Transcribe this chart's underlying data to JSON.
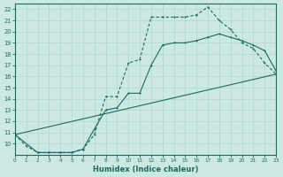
{
  "xlabel": "Humidex (Indice chaleur)",
  "bg_color": "#cce8e2",
  "line_color": "#1a6b5e",
  "grid_color": "#b0d8d0",
  "xlim": [
    0,
    23
  ],
  "ylim": [
    9,
    22.5
  ],
  "xtick_vals": [
    0,
    1,
    2,
    3,
    4,
    5,
    6,
    7,
    8,
    9,
    10,
    11,
    12,
    13,
    14,
    15,
    16,
    17,
    18,
    19,
    20,
    21,
    22,
    23
  ],
  "ytick_vals": [
    10,
    11,
    12,
    13,
    14,
    15,
    16,
    17,
    18,
    19,
    20,
    21,
    22
  ],
  "line1_x": [
    0,
    1,
    2,
    3,
    4,
    5,
    6,
    7,
    8,
    9,
    10,
    11,
    12,
    13,
    14,
    15,
    16,
    17,
    18,
    19,
    20,
    21,
    22,
    23
  ],
  "line1_y": [
    10.8,
    9.8,
    9.2,
    9.2,
    9.2,
    9.2,
    9.5,
    10.8,
    14.2,
    14.2,
    17.2,
    17.5,
    21.3,
    21.3,
    21.3,
    21.3,
    21.5,
    22.2,
    21.0,
    20.2,
    19.0,
    18.5,
    17.2,
    16.2
  ],
  "line2_x": [
    0,
    2,
    3,
    4,
    5,
    6,
    7,
    8,
    9,
    10,
    11,
    12,
    13,
    14,
    15,
    16,
    17,
    18,
    19,
    20,
    21,
    22,
    23
  ],
  "line2_y": [
    10.8,
    9.2,
    9.2,
    9.2,
    9.2,
    9.5,
    11.3,
    13.0,
    13.2,
    14.5,
    14.5,
    17.0,
    18.8,
    19.0,
    19.0,
    19.2,
    19.5,
    19.8,
    19.5,
    19.2,
    18.8,
    18.3,
    16.5
  ],
  "line3_x": [
    0,
    23
  ],
  "line3_y": [
    10.8,
    16.2
  ]
}
